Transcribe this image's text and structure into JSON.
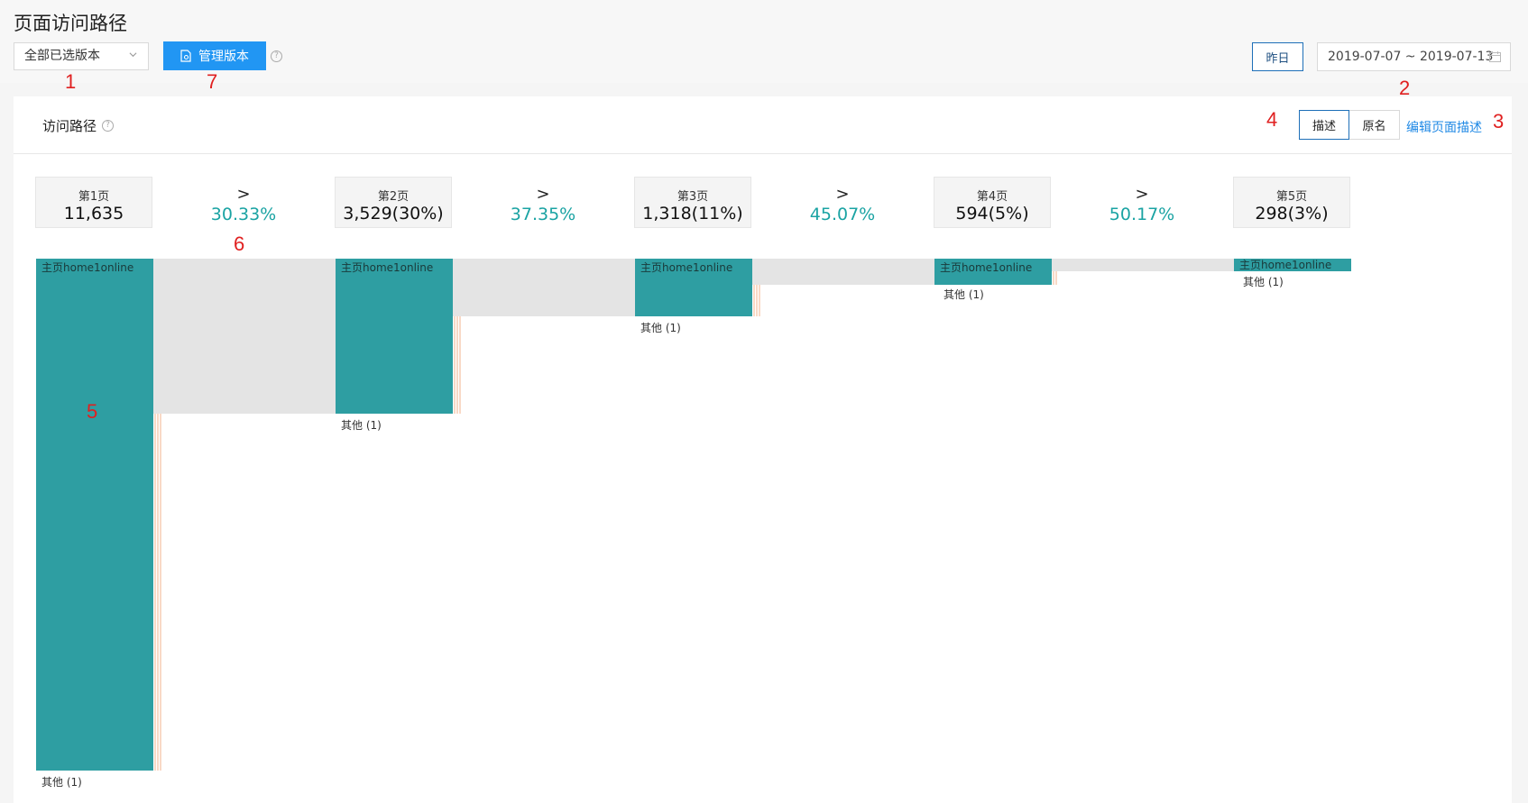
{
  "header": {
    "title": "页面访问路径",
    "version_select": "全部已选版本",
    "manage_label": "管理版本",
    "help": "?",
    "yesterday_label": "昨日",
    "date_range": "2019-07-07 ~ 2019-07-13"
  },
  "annotations": [
    "1",
    "7",
    "2",
    "4",
    "3",
    "5",
    "6"
  ],
  "card": {
    "title": "访问路径",
    "seg_describe": "描述",
    "seg_original": "原名",
    "edit_link": "编辑页面描述"
  },
  "steps": [
    {
      "label": "第1页",
      "value": "11,635"
    },
    {
      "label": "第2页",
      "value": "3,529(30%)"
    },
    {
      "label": "第3页",
      "value": "1,318(11%)"
    },
    {
      "label": "第4页",
      "value": "594(5%)"
    },
    {
      "label": "第5页",
      "value": "298(3%)"
    }
  ],
  "conversions": [
    {
      "arrow": ">",
      "pct": "30.33%"
    },
    {
      "arrow": ">",
      "pct": "37.35%"
    },
    {
      "arrow": ">",
      "pct": "45.07%"
    },
    {
      "arrow": ">",
      "pct": "50.17%"
    }
  ],
  "nodes": [
    {
      "label": "主页home1online",
      "other": "其他 (1)"
    },
    {
      "label": "主页home1online",
      "other": "其他 (1)"
    },
    {
      "label": "主页home1online",
      "other": "其他 (1)"
    },
    {
      "label": "主页home1online",
      "other": "其他 (1)"
    },
    {
      "label": "主页home1online",
      "other": "其他 (1)"
    }
  ],
  "colors": {
    "node": "#2e9ea2",
    "link": "#e4e4e4",
    "accent": "#2196f3",
    "pct": "#1aa3a3",
    "annotation": "#e02020"
  }
}
